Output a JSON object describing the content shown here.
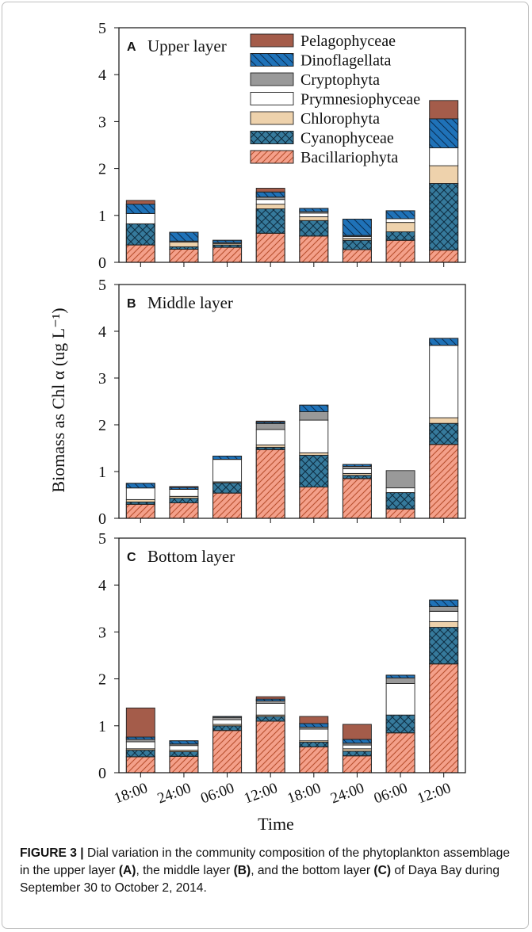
{
  "figure": {
    "ylabel": "Biomass as Chl α (ug L⁻¹)",
    "xlabel": "Time",
    "caption": {
      "lead": "FIGURE 3 |",
      "text1": " Dial variation in the community composition of the phytoplankton assemblage in the upper layer ",
      "ref_a": "(A)",
      "text2": ", the middle layer ",
      "ref_b": "(B)",
      "text3": ", and the bottom layer ",
      "ref_c": "(C)",
      "text4": " of Daya Bay during September 30 to October 2, 2014."
    }
  },
  "chart_data": [
    {
      "type": "bar",
      "panel": "A",
      "title": "Upper layer",
      "ylim": [
        0,
        5
      ],
      "yticks": [
        0,
        1,
        2,
        3,
        4,
        5
      ],
      "stacked": true,
      "categories": [
        "18:00",
        "24:00",
        "06:00",
        "12:00",
        "18:00",
        "24:00",
        "06:00",
        "12:00"
      ],
      "series": [
        {
          "name": "Bacillariophyta",
          "color": "#f4a08a",
          "pattern": "diag",
          "values": [
            0.37,
            0.28,
            0.32,
            0.62,
            0.56,
            0.27,
            0.47,
            0.26
          ]
        },
        {
          "name": "Cyanophyceae",
          "color": "#367a9c",
          "pattern": "cross",
          "values": [
            0.45,
            0.05,
            0.05,
            0.52,
            0.33,
            0.2,
            0.18,
            1.42
          ]
        },
        {
          "name": "Chlorophyta",
          "color": "#eed2ac",
          "pattern": "none",
          "values": [
            0.0,
            0.1,
            0.03,
            0.1,
            0.08,
            0.04,
            0.2,
            0.38
          ]
        },
        {
          "name": "Prymnesiophyceae",
          "color": "#ffffff",
          "pattern": "none",
          "values": [
            0.22,
            0.02,
            0.02,
            0.1,
            0.08,
            0.04,
            0.08,
            0.38
          ]
        },
        {
          "name": "Cryptophyta",
          "color": "#999999",
          "pattern": "none",
          "values": [
            0.0,
            0.0,
            0.0,
            0.05,
            0.03,
            0.02,
            0.0,
            0.0
          ]
        },
        {
          "name": "Dinoflagellata",
          "color": "#1f72b8",
          "pattern": "back",
          "values": [
            0.2,
            0.19,
            0.05,
            0.11,
            0.07,
            0.35,
            0.17,
            0.62
          ]
        },
        {
          "name": "Pelagophyceae",
          "color": "#a45c4a",
          "pattern": "none",
          "values": [
            0.08,
            0.0,
            0.0,
            0.08,
            0.0,
            0.0,
            0.0,
            0.39
          ]
        }
      ]
    },
    {
      "type": "bar",
      "panel": "B",
      "title": "Middle layer",
      "ylim": [
        0,
        5
      ],
      "yticks": [
        0,
        1,
        2,
        3,
        4,
        5
      ],
      "stacked": true,
      "categories": [
        "18:00",
        "24:00",
        "06:00",
        "12:00",
        "18:00",
        "24:00",
        "06:00",
        "12:00"
      ],
      "series": [
        {
          "name": "Bacillariophyta",
          "color": "#f4a08a",
          "pattern": "diag",
          "values": [
            0.3,
            0.33,
            0.54,
            1.47,
            0.67,
            0.85,
            0.2,
            1.58
          ]
        },
        {
          "name": "Cyanophyceae",
          "color": "#367a9c",
          "pattern": "cross",
          "values": [
            0.05,
            0.1,
            0.22,
            0.05,
            0.68,
            0.07,
            0.35,
            0.45
          ]
        },
        {
          "name": "Chlorophyta",
          "color": "#eed2ac",
          "pattern": "none",
          "values": [
            0.05,
            0.04,
            0.02,
            0.05,
            0.05,
            0.04,
            0.0,
            0.12
          ]
        },
        {
          "name": "Prymnesiophyceae",
          "color": "#ffffff",
          "pattern": "none",
          "values": [
            0.25,
            0.15,
            0.48,
            0.33,
            0.7,
            0.1,
            0.1,
            1.55
          ]
        },
        {
          "name": "Cryptophyta",
          "color": "#999999",
          "pattern": "none",
          "values": [
            0.0,
            0.0,
            0.0,
            0.13,
            0.18,
            0.05,
            0.37,
            0.0
          ]
        },
        {
          "name": "Dinoflagellata",
          "color": "#1f72b8",
          "pattern": "back",
          "values": [
            0.1,
            0.04,
            0.07,
            0.03,
            0.14,
            0.04,
            0.0,
            0.15
          ]
        },
        {
          "name": "Pelagophyceae",
          "color": "#a45c4a",
          "pattern": "none",
          "values": [
            0.0,
            0.02,
            0.0,
            0.02,
            0.0,
            0.0,
            0.0,
            0.0
          ]
        }
      ]
    },
    {
      "type": "bar",
      "panel": "C",
      "title": "Bottom layer",
      "ylim": [
        0,
        5
      ],
      "yticks": [
        0,
        1,
        2,
        3,
        4,
        5
      ],
      "stacked": true,
      "categories": [
        "18:00",
        "24:00",
        "06:00",
        "12:00",
        "18:00",
        "24:00",
        "06:00",
        "12:00"
      ],
      "series": [
        {
          "name": "Bacillariophyta",
          "color": "#f4a08a",
          "pattern": "diag",
          "values": [
            0.34,
            0.35,
            0.9,
            1.1,
            0.55,
            0.36,
            0.85,
            2.32
          ]
        },
        {
          "name": "Cyanophyceae",
          "color": "#367a9c",
          "pattern": "cross",
          "values": [
            0.14,
            0.1,
            0.1,
            0.1,
            0.1,
            0.1,
            0.38,
            0.78
          ]
        },
        {
          "name": "Chlorophyta",
          "color": "#eed2ac",
          "pattern": "none",
          "values": [
            0.03,
            0.03,
            0.03,
            0.03,
            0.03,
            0.05,
            0.0,
            0.12
          ]
        },
        {
          "name": "Prymnesiophyceae",
          "color": "#ffffff",
          "pattern": "none",
          "values": [
            0.15,
            0.1,
            0.1,
            0.25,
            0.25,
            0.08,
            0.67,
            0.22
          ]
        },
        {
          "name": "Cryptophyta",
          "color": "#999999",
          "pattern": "none",
          "values": [
            0.05,
            0.03,
            0.05,
            0.05,
            0.04,
            0.04,
            0.12,
            0.1
          ]
        },
        {
          "name": "Dinoflagellata",
          "color": "#1f72b8",
          "pattern": "back",
          "values": [
            0.05,
            0.07,
            0.02,
            0.04,
            0.08,
            0.08,
            0.06,
            0.14
          ]
        },
        {
          "name": "Pelagophyceae",
          "color": "#a45c4a",
          "pattern": "none",
          "values": [
            0.62,
            0.0,
            0.0,
            0.05,
            0.15,
            0.32,
            0.0,
            0.0
          ]
        }
      ]
    }
  ]
}
